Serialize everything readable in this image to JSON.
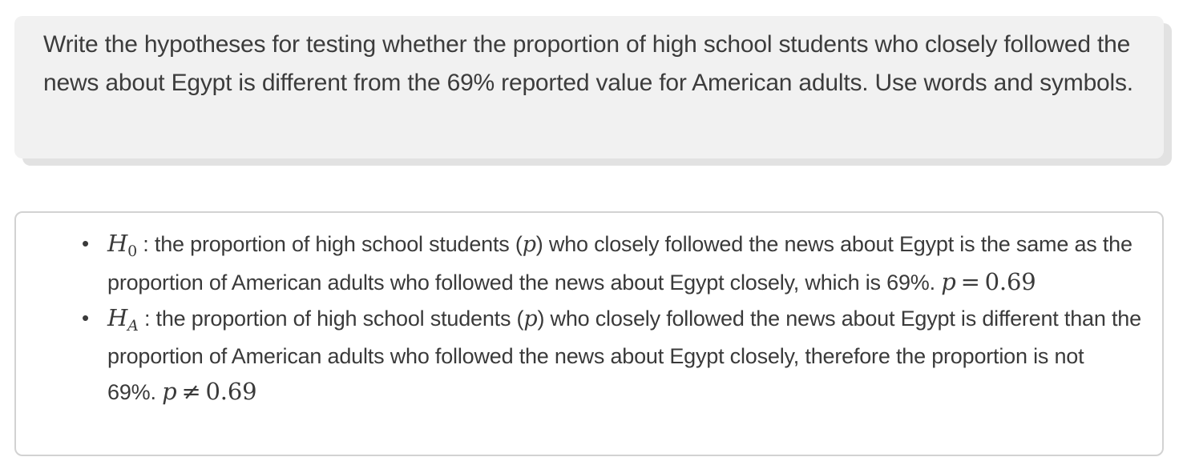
{
  "question": {
    "text": "Write the hypotheses for testing whether the proportion of high school students who closely followed the news about Egypt is different from the 69% reported value for American adults. Use words and symbols."
  },
  "answers": [
    {
      "symbol": "H",
      "subscript": "0",
      "text_before_var": ": the proportion of high school students (",
      "var": "p",
      "text_after_var": ") who closely followed the news about Egypt is the same as the proportion of American adults who followed the news about Egypt closely, which is 69%.",
      "eq_lhs": "p",
      "eq_op": "=",
      "eq_rhs": "0.69"
    },
    {
      "symbol": "H",
      "subscript": "A",
      "text_before_var": ": the proportion of high school students (",
      "var": "p",
      "text_after_var": ") who closely followed the news about Egypt is different than the proportion of American adults who followed the news about Egypt closely, therefore the proportion is not 69%.",
      "eq_lhs": "p",
      "eq_op": "≠",
      "eq_rhs": "0.69"
    }
  ]
}
